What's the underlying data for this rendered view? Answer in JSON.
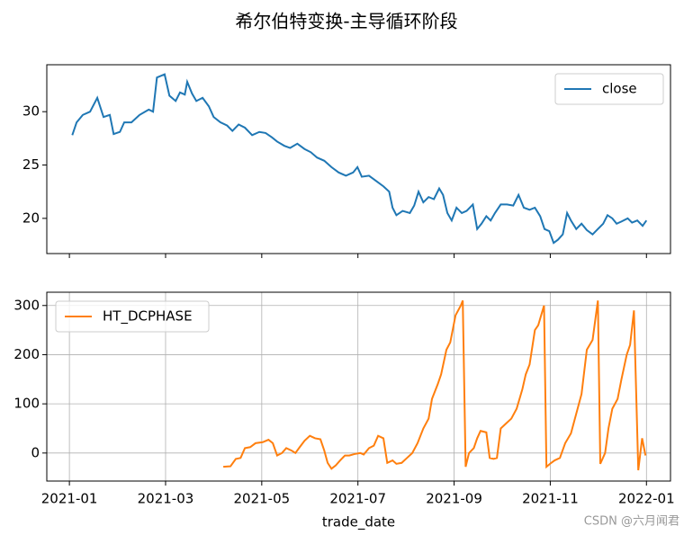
{
  "title": "希尔伯特变换-主导循环阶段",
  "watermark": "CSDN @六月闻君",
  "chart_data": [
    {
      "type": "line",
      "legend": "upper right",
      "grid": false,
      "xlim": [
        -0.47,
        12.5
      ],
      "ylim": [
        16.7,
        34.4
      ],
      "yticks": [
        20,
        25,
        30
      ],
      "series": [
        {
          "name": "close",
          "color": "#1f77b4",
          "x": [
            0.06,
            0.15,
            0.28,
            0.43,
            0.58,
            0.71,
            0.84,
            0.92,
            1.05,
            1.14,
            1.29,
            1.46,
            1.65,
            1.74,
            1.82,
            1.98,
            2.08,
            2.21,
            2.3,
            2.4,
            2.45,
            2.55,
            2.64,
            2.77,
            2.9,
            3.0,
            3.14,
            3.28,
            3.39,
            3.52,
            3.65,
            3.8,
            3.95,
            4.08,
            4.21,
            4.32,
            4.47,
            4.59,
            4.74,
            4.89,
            5.02,
            5.15,
            5.3,
            5.45,
            5.6,
            5.75,
            5.9,
            5.99,
            6.08,
            6.23,
            6.38,
            6.53,
            6.65,
            6.72,
            6.8,
            6.93,
            7.08,
            7.17,
            7.26,
            7.36,
            7.47,
            7.58,
            7.69,
            7.77,
            7.86,
            7.95,
            8.05,
            8.16,
            8.26,
            8.39,
            8.48,
            8.57,
            8.67,
            8.76,
            8.85,
            8.97,
            9.1,
            9.23,
            9.34,
            9.45,
            9.57,
            9.68,
            9.79,
            9.88,
            9.98,
            10.07,
            10.16,
            10.26,
            10.35,
            10.43,
            10.54,
            10.65,
            10.76,
            10.88,
            10.99,
            11.1,
            11.19,
            11.29,
            11.38,
            11.48,
            11.61,
            11.7,
            11.81,
            11.92,
            12.0
          ],
          "values": [
            27.8,
            29,
            29.7,
            30,
            31.3,
            29.5,
            29.7,
            27.9,
            28.1,
            29,
            29,
            29.7,
            30.2,
            30,
            33.2,
            33.5,
            31.5,
            31.0,
            31.8,
            31.6,
            32.8,
            31.7,
            31.0,
            31.3,
            30.5,
            29.5,
            29,
            28.7,
            28.2,
            28.8,
            28.5,
            27.8,
            28.1,
            28.0,
            27.6,
            27.2,
            26.8,
            26.6,
            27.0,
            26.5,
            26.2,
            25.7,
            25.4,
            24.8,
            24.3,
            24.0,
            24.3,
            24.8,
            23.9,
            24.0,
            23.5,
            23.0,
            22.5,
            21.0,
            20.3,
            20.7,
            20.5,
            21.2,
            22.5,
            21.5,
            22.0,
            21.8,
            22.8,
            22.2,
            20.5,
            19.8,
            21.0,
            20.5,
            20.7,
            21.3,
            19.0,
            19.5,
            20.2,
            19.8,
            20.5,
            21.3,
            21.3,
            21.2,
            22.2,
            21.0,
            20.8,
            21.0,
            20.2,
            19.0,
            18.8,
            17.7,
            18.0,
            18.5,
            20.5,
            19.8,
            19.0,
            19.5,
            18.9,
            18.5,
            19.0,
            19.5,
            20.3,
            20.0,
            19.5,
            19.7,
            20.0,
            19.6,
            19.8,
            19.3,
            19.8
          ]
        }
      ]
    },
    {
      "type": "line",
      "legend": "upper left",
      "grid": true,
      "xlabel": "trade_date",
      "xlim": [
        -0.47,
        12.5
      ],
      "ylim": [
        -57,
        327
      ],
      "yticks": [
        0,
        100,
        200,
        300
      ],
      "xticks": [
        {
          "value": 0,
          "label": "2021-01"
        },
        {
          "value": 2,
          "label": "2021-03"
        },
        {
          "value": 4,
          "label": "2021-05"
        },
        {
          "value": 6,
          "label": "2021-07"
        },
        {
          "value": 8,
          "label": "2021-09"
        },
        {
          "value": 10,
          "label": "2021-11"
        },
        {
          "value": 12,
          "label": "2022-01"
        }
      ],
      "series": [
        {
          "name": "HT_DCPHASE",
          "color": "#ff7f0e",
          "x": [
            3.2,
            3.35,
            3.46,
            3.56,
            3.65,
            3.76,
            3.87,
            4.02,
            4.14,
            4.23,
            4.32,
            4.42,
            4.51,
            4.62,
            4.7,
            4.79,
            4.89,
            5.0,
            5.11,
            5.22,
            5.3,
            5.37,
            5.45,
            5.54,
            5.63,
            5.73,
            5.82,
            5.93,
            6.05,
            6.12,
            6.23,
            6.33,
            6.42,
            6.53,
            6.61,
            6.72,
            6.8,
            6.91,
            7.02,
            7.13,
            7.24,
            7.36,
            7.47,
            7.54,
            7.66,
            7.73,
            7.84,
            7.92,
            8.03,
            8.14,
            8.18,
            8.24,
            8.31,
            8.41,
            8.48,
            8.55,
            8.67,
            8.74,
            8.82,
            8.89,
            8.97,
            9.08,
            9.19,
            9.3,
            9.42,
            9.49,
            9.57,
            9.68,
            9.75,
            9.87,
            9.92,
            10.02,
            10.09,
            10.2,
            10.31,
            10.43,
            10.54,
            10.65,
            10.76,
            10.88,
            10.99,
            11.04,
            11.14,
            11.21,
            11.29,
            11.4,
            11.48,
            11.59,
            11.66,
            11.74,
            11.83,
            11.91,
            11.98
          ],
          "values": [
            -28,
            -27,
            -12,
            -10,
            10,
            12,
            20,
            22,
            27,
            20,
            -5,
            0,
            10,
            5,
            0,
            12,
            25,
            35,
            30,
            28,
            5,
            -20,
            -32,
            -25,
            -15,
            -5,
            -5,
            -2,
            0,
            -3,
            10,
            15,
            35,
            30,
            -20,
            -15,
            -22,
            -20,
            -10,
            0,
            20,
            50,
            70,
            110,
            140,
            160,
            210,
            225,
            280,
            300,
            310,
            -28,
            0,
            10,
            30,
            45,
            42,
            -10,
            -12,
            -10,
            50,
            60,
            70,
            90,
            130,
            160,
            180,
            250,
            260,
            300,
            -28,
            -20,
            -15,
            -10,
            20,
            40,
            80,
            120,
            210,
            230,
            310,
            -22,
            0,
            50,
            90,
            110,
            150,
            200,
            220,
            290,
            -35,
            30,
            -5
          ]
        }
      ]
    }
  ]
}
